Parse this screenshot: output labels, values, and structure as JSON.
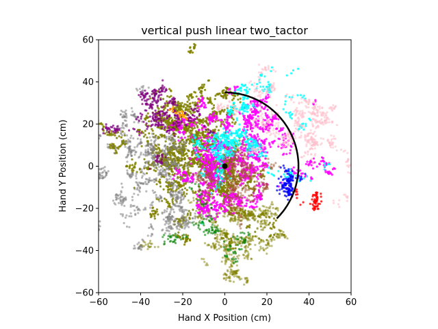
{
  "chart_data": {
    "type": "scatter",
    "title": "vertical push linear two_tactor",
    "xlabel": "Hand X Position (cm)",
    "ylabel": "Hand Y Position (cm)",
    "xlim": [
      -60,
      60
    ],
    "ylim": [
      -60,
      60
    ],
    "xticks": [
      -60,
      -40,
      -20,
      0,
      20,
      40,
      60
    ],
    "yticks": [
      -60,
      -40,
      -20,
      0,
      20,
      40,
      60
    ],
    "xtick_labels": [
      "−60",
      "−40",
      "−20",
      "0",
      "20",
      "40",
      "60"
    ],
    "ytick_labels": [
      "−60",
      "−40",
      "−20",
      "0",
      "20",
      "40",
      "60"
    ],
    "grid": false,
    "legend": "none",
    "traces": [
      {
        "color": "#808000",
        "alpha": 0.85,
        "center": [
          -18,
          5
        ],
        "spread": [
          18,
          17
        ],
        "count": 2200
      },
      {
        "color": "#808000",
        "alpha": 0.5,
        "center": [
          5,
          -35
        ],
        "spread": [
          14,
          12
        ],
        "count": 700
      },
      {
        "color": "#808080",
        "alpha": 0.55,
        "center": [
          -35,
          -5
        ],
        "spread": [
          18,
          18
        ],
        "count": 900
      },
      {
        "color": "#ff00ff",
        "alpha": 0.85,
        "center": [
          5,
          5
        ],
        "spread": [
          16,
          16
        ],
        "count": 1500
      },
      {
        "color": "#00ffff",
        "alpha": 0.8,
        "center": [
          8,
          12
        ],
        "spread": [
          15,
          16
        ],
        "count": 600
      },
      {
        "color": "#ffc0cb",
        "alpha": 0.6,
        "center": [
          30,
          20
        ],
        "spread": [
          14,
          16
        ],
        "count": 600
      },
      {
        "color": "#800080",
        "alpha": 0.75,
        "center": [
          -28,
          18
        ],
        "spread": [
          12,
          14
        ],
        "count": 350
      },
      {
        "color": "#a0522d",
        "alpha": 0.5,
        "center": [
          5,
          -5
        ],
        "spread": [
          14,
          14
        ],
        "count": 500
      },
      {
        "color": "#0000ff",
        "alpha": 0.75,
        "center": [
          30,
          -12
        ],
        "spread": [
          5,
          5
        ],
        "count": 120
      },
      {
        "color": "#ff0000",
        "alpha": 0.8,
        "center": [
          37,
          -19
        ],
        "spread": [
          4,
          2
        ],
        "count": 60
      },
      {
        "color": "#008000",
        "alpha": 0.6,
        "center": [
          -10,
          -25
        ],
        "spread": [
          12,
          8
        ],
        "count": 150
      },
      {
        "color": "#ffa500",
        "alpha": 0.9,
        "center": [
          -20,
          30
        ],
        "spread": [
          20,
          12
        ],
        "count": 25
      }
    ],
    "arc": {
      "center": [
        0,
        0
      ],
      "radius": 35,
      "start_deg": 90,
      "end_deg": -45,
      "color": "#000000"
    },
    "target": {
      "x": 0,
      "y": 0,
      "color": "#000000"
    }
  }
}
